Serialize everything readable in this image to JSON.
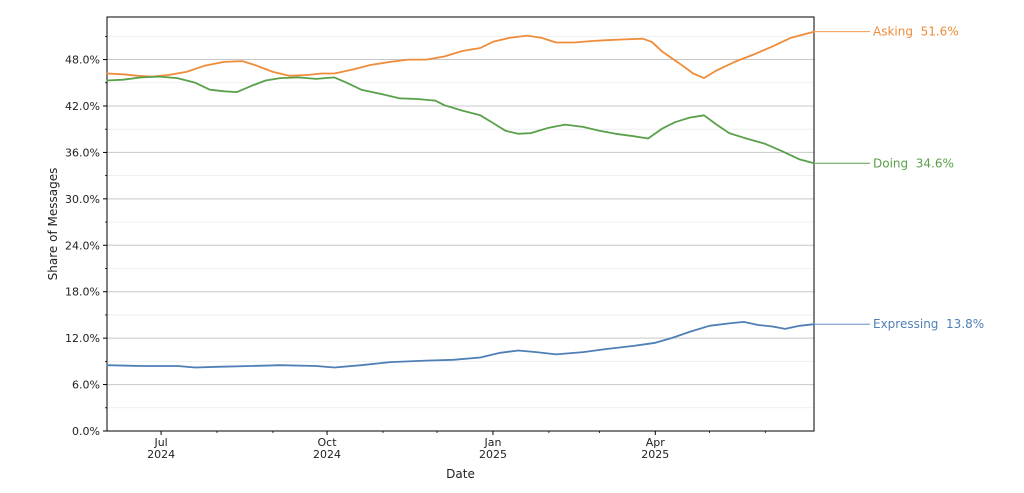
{
  "chart_data": {
    "type": "line",
    "title": "",
    "xlabel": "Date",
    "ylabel": "Share of Messages",
    "xlim": [
      "2024-06-01",
      "2025-06-28"
    ],
    "ylim": [
      0,
      53.5
    ],
    "y_ticks": [
      0,
      6,
      12,
      18,
      24,
      30,
      36,
      42,
      48
    ],
    "y_tick_labels": [
      "0.0%",
      "6.0%",
      "12.0%",
      "18.0%",
      "24.0%",
      "30.0%",
      "36.0%",
      "42.0%",
      "48.0%"
    ],
    "y_minor_ticks": [
      3,
      9,
      15,
      21,
      27,
      33,
      39,
      45,
      51
    ],
    "x_ticks": [
      {
        "date": "2024-07-01",
        "month": "Jul",
        "year": "2024"
      },
      {
        "date": "2024-10-01",
        "month": "Oct",
        "year": "2024"
      },
      {
        "date": "2025-01-01",
        "month": "Jan",
        "year": "2025"
      },
      {
        "date": "2025-04-01",
        "month": "Apr",
        "year": "2025"
      }
    ],
    "x_minor_ticks": [
      "2024-08-01",
      "2024-09-01",
      "2024-11-01",
      "2024-12-01",
      "2025-02-01",
      "2025-03-01",
      "2025-05-01",
      "2025-06-01"
    ],
    "grid": "horizontal",
    "series": [
      {
        "name": "Asking",
        "end_label": "Asking  51.6%",
        "color": "#ef8c3a",
        "points": [
          [
            "2024-06-01",
            46.2
          ],
          [
            "2024-06-10",
            46.1
          ],
          [
            "2024-06-18",
            45.9
          ],
          [
            "2024-06-26",
            45.8
          ],
          [
            "2024-07-05",
            46.0
          ],
          [
            "2024-07-15",
            46.4
          ],
          [
            "2024-07-25",
            47.2
          ],
          [
            "2024-08-05",
            47.7
          ],
          [
            "2024-08-15",
            47.8
          ],
          [
            "2024-08-22",
            47.3
          ],
          [
            "2024-09-01",
            46.4
          ],
          [
            "2024-09-10",
            45.9
          ],
          [
            "2024-09-20",
            46.0
          ],
          [
            "2024-09-28",
            46.2
          ],
          [
            "2024-10-05",
            46.2
          ],
          [
            "2024-10-15",
            46.7
          ],
          [
            "2024-10-25",
            47.3
          ],
          [
            "2024-11-05",
            47.7
          ],
          [
            "2024-11-15",
            48.0
          ],
          [
            "2024-11-25",
            48.0
          ],
          [
            "2024-12-05",
            48.4
          ],
          [
            "2024-12-15",
            49.1
          ],
          [
            "2024-12-25",
            49.5
          ],
          [
            "2025-01-01",
            50.3
          ],
          [
            "2025-01-10",
            50.8
          ],
          [
            "2025-01-20",
            51.1
          ],
          [
            "2025-01-28",
            50.8
          ],
          [
            "2025-02-05",
            50.2
          ],
          [
            "2025-02-15",
            50.2
          ],
          [
            "2025-02-25",
            50.4
          ],
          [
            "2025-03-05",
            50.5
          ],
          [
            "2025-03-15",
            50.6
          ],
          [
            "2025-03-25",
            50.7
          ],
          [
            "2025-03-30",
            50.3
          ],
          [
            "2025-04-05",
            49.0
          ],
          [
            "2025-04-15",
            47.4
          ],
          [
            "2025-04-22",
            46.2
          ],
          [
            "2025-04-28",
            45.6
          ],
          [
            "2025-05-05",
            46.6
          ],
          [
            "2025-05-15",
            47.7
          ],
          [
            "2025-05-25",
            48.6
          ],
          [
            "2025-06-05",
            49.7
          ],
          [
            "2025-06-15",
            50.8
          ],
          [
            "2025-06-28",
            51.6
          ]
        ]
      },
      {
        "name": "Doing",
        "end_label": "Doing  34.6%",
        "color": "#5aa04a",
        "points": [
          [
            "2024-06-01",
            45.3
          ],
          [
            "2024-06-10",
            45.4
          ],
          [
            "2024-06-20",
            45.7
          ],
          [
            "2024-06-30",
            45.8
          ],
          [
            "2024-07-10",
            45.6
          ],
          [
            "2024-07-20",
            45.0
          ],
          [
            "2024-07-28",
            44.1
          ],
          [
            "2024-08-05",
            43.9
          ],
          [
            "2024-08-12",
            43.8
          ],
          [
            "2024-08-20",
            44.6
          ],
          [
            "2024-08-28",
            45.3
          ],
          [
            "2024-09-05",
            45.6
          ],
          [
            "2024-09-15",
            45.7
          ],
          [
            "2024-09-25",
            45.5
          ],
          [
            "2024-10-05",
            45.7
          ],
          [
            "2024-10-12",
            45.0
          ],
          [
            "2024-10-20",
            44.1
          ],
          [
            "2024-11-01",
            43.5
          ],
          [
            "2024-11-10",
            43.0
          ],
          [
            "2024-11-20",
            42.9
          ],
          [
            "2024-11-30",
            42.7
          ],
          [
            "2024-12-05",
            42.1
          ],
          [
            "2024-12-15",
            41.4
          ],
          [
            "2024-12-25",
            40.8
          ],
          [
            "2025-01-01",
            39.8
          ],
          [
            "2025-01-08",
            38.8
          ],
          [
            "2025-01-15",
            38.4
          ],
          [
            "2025-01-22",
            38.5
          ],
          [
            "2025-02-01",
            39.2
          ],
          [
            "2025-02-10",
            39.6
          ],
          [
            "2025-02-20",
            39.3
          ],
          [
            "2025-03-01",
            38.8
          ],
          [
            "2025-03-10",
            38.4
          ],
          [
            "2025-03-20",
            38.1
          ],
          [
            "2025-03-28",
            37.8
          ],
          [
            "2025-04-05",
            39.1
          ],
          [
            "2025-04-12",
            39.9
          ],
          [
            "2025-04-20",
            40.5
          ],
          [
            "2025-04-28",
            40.8
          ],
          [
            "2025-05-05",
            39.6
          ],
          [
            "2025-05-12",
            38.5
          ],
          [
            "2025-05-20",
            37.9
          ],
          [
            "2025-06-01",
            37.1
          ],
          [
            "2025-06-10",
            36.2
          ],
          [
            "2025-06-20",
            35.1
          ],
          [
            "2025-06-28",
            34.6
          ]
        ]
      },
      {
        "name": "Expressing",
        "end_label": "Expressing  13.8%",
        "color": "#4f7fb5",
        "points": [
          [
            "2024-06-01",
            8.5
          ],
          [
            "2024-06-20",
            8.4
          ],
          [
            "2024-07-10",
            8.4
          ],
          [
            "2024-07-20",
            8.2
          ],
          [
            "2024-08-01",
            8.3
          ],
          [
            "2024-08-20",
            8.4
          ],
          [
            "2024-09-05",
            8.5
          ],
          [
            "2024-09-25",
            8.4
          ],
          [
            "2024-10-05",
            8.2
          ],
          [
            "2024-10-20",
            8.5
          ],
          [
            "2024-11-05",
            8.9
          ],
          [
            "2024-11-25",
            9.1
          ],
          [
            "2024-12-10",
            9.2
          ],
          [
            "2024-12-25",
            9.5
          ],
          [
            "2025-01-05",
            10.1
          ],
          [
            "2025-01-15",
            10.4
          ],
          [
            "2025-01-25",
            10.2
          ],
          [
            "2025-02-05",
            9.9
          ],
          [
            "2025-02-20",
            10.2
          ],
          [
            "2025-03-05",
            10.6
          ],
          [
            "2025-03-20",
            11.0
          ],
          [
            "2025-04-01",
            11.4
          ],
          [
            "2025-04-10",
            12.0
          ],
          [
            "2025-04-20",
            12.8
          ],
          [
            "2025-05-01",
            13.6
          ],
          [
            "2025-05-12",
            13.9
          ],
          [
            "2025-05-20",
            14.1
          ],
          [
            "2025-05-28",
            13.7
          ],
          [
            "2025-06-05",
            13.5
          ],
          [
            "2025-06-12",
            13.2
          ],
          [
            "2025-06-20",
            13.6
          ],
          [
            "2025-06-28",
            13.8
          ]
        ]
      }
    ]
  }
}
